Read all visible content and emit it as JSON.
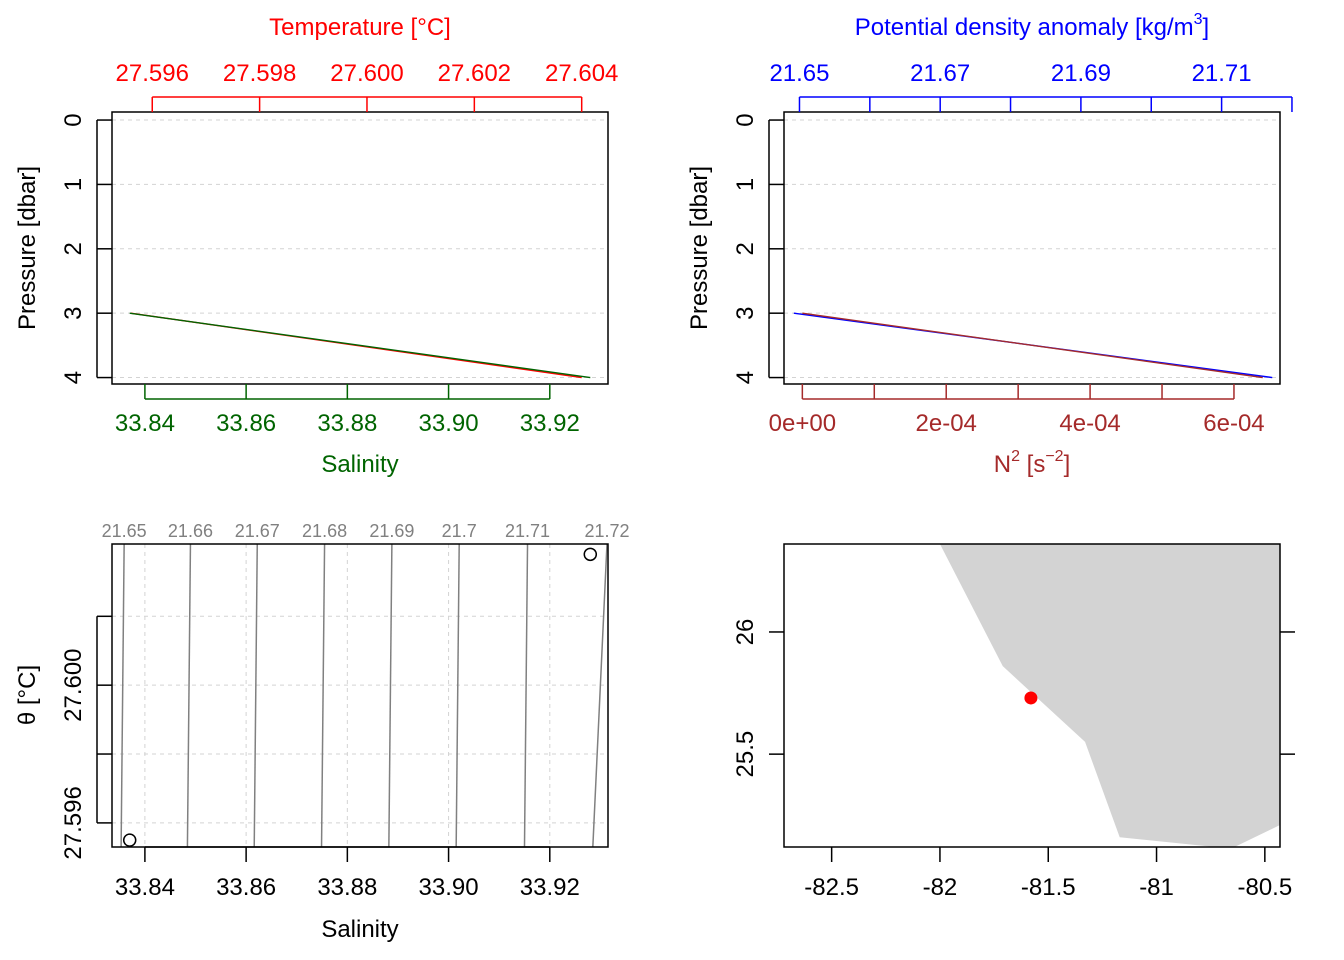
{
  "chart_data": [
    {
      "type": "line",
      "panel": "profile-salinity-temperature",
      "top_axis": {
        "label": "Temperature [°C]",
        "color": "#ff0000",
        "range": [
          27.59525,
          27.60449
        ],
        "ticks": [
          27.596,
          27.598,
          27.6,
          27.602,
          27.604
        ],
        "tick_labels": [
          "27.596",
          "27.598",
          "27.600",
          "27.602",
          "27.604"
        ]
      },
      "bottom_axis": {
        "label": "Salinity",
        "color": "#006400",
        "range": [
          33.8335,
          33.9315
        ],
        "ticks": [
          33.84,
          33.86,
          33.88,
          33.9,
          33.92
        ],
        "tick_labels": [
          "33.84",
          "33.86",
          "33.88",
          "33.90",
          "33.92"
        ]
      },
      "y_axis": {
        "label": "Pressure [dbar]",
        "range": [
          0,
          4
        ],
        "reversed": true,
        "ticks": [
          0,
          1,
          2,
          3,
          4
        ],
        "tick_labels": [
          "0",
          "1",
          "2",
          "3",
          "4"
        ]
      },
      "grid": true,
      "series": [
        {
          "variable": "salinity",
          "color": "#006400",
          "x": [
            33.837,
            33.928
          ],
          "y": [
            3,
            4
          ]
        },
        {
          "variable": "temperature",
          "color": "#ff0000",
          "x": [
            27.5956,
            27.604
          ],
          "y": [
            3,
            4
          ]
        }
      ]
    },
    {
      "type": "line",
      "panel": "profile-density-n2",
      "top_axis": {
        "label_main": "Potential density anomaly [kg/m",
        "label_sup": "3",
        "label_tail": "]",
        "color": "#0000ff",
        "range": [
          21.6478,
          21.7183
        ],
        "ticks": [
          21.65,
          21.66,
          21.67,
          21.68,
          21.69,
          21.7,
          21.71,
          21.72
        ],
        "tick_labels": [
          "21.65",
          "",
          "21.67",
          "",
          "21.69",
          "",
          "21.71",
          ""
        ]
      },
      "bottom_axis": {
        "label_main": "N",
        "label_sup1": "2",
        "label_mid": " [s",
        "label_sup2": "−2",
        "label_tail": "]",
        "color": "#a52a2a",
        "range": [
          -2.55e-05,
          0.000664
        ],
        "ticks": [
          0,
          0.0001,
          0.0002,
          0.0003,
          0.0004,
          0.0005,
          0.0006
        ],
        "tick_labels": [
          "0e+00",
          "",
          "2e-04",
          "",
          "4e-04",
          "",
          "6e-04"
        ]
      },
      "y_axis": {
        "label": "Pressure [dbar]",
        "range": [
          0,
          4
        ],
        "reversed": true,
        "ticks": [
          0,
          1,
          2,
          3,
          4
        ],
        "tick_labels": [
          "0",
          "1",
          "2",
          "3",
          "4"
        ]
      },
      "grid": true,
      "series": [
        {
          "variable": "density",
          "color": "#0000ff",
          "x": [
            21.6492,
            21.7172
          ],
          "y": [
            3,
            4
          ]
        },
        {
          "variable": "N2",
          "color": "#a52a2a",
          "x": [
            0.0,
            0.00064
          ],
          "y": [
            3,
            4
          ]
        }
      ]
    },
    {
      "type": "scatter",
      "panel": "ts-diagram",
      "x_axis": {
        "label": "Salinity",
        "range": [
          33.8335,
          33.9315
        ],
        "ticks": [
          33.84,
          33.86,
          33.88,
          33.9,
          33.92
        ],
        "tick_labels": [
          "33.84",
          "33.86",
          "33.88",
          "33.90",
          "33.92"
        ]
      },
      "y_axis": {
        "label": "θ [°C]",
        "range": [
          27.5953,
          27.6041
        ],
        "ticks": [
          27.596,
          27.598,
          27.6,
          27.602
        ],
        "tick_labels": [
          "27.596",
          "",
          "27.600",
          ""
        ]
      },
      "grid": true,
      "isopycnals": {
        "color": "#808080",
        "labels": [
          "21.65",
          "21.66",
          "21.67",
          "21.68",
          "21.69",
          "21.7",
          "21.71",
          "21.72"
        ],
        "x_bottom": [
          33.8353,
          33.8484,
          33.8616,
          33.8749,
          33.8882,
          33.9015,
          33.915,
          33.9285
        ],
        "x_top": [
          33.8359,
          33.849,
          33.8622,
          33.8755,
          33.8888,
          33.9021,
          33.9156,
          33.9313
        ],
        "label_x": [
          33.8395,
          33.8595,
          33.8795,
          33.8995,
          33.9195,
          33.9395,
          33.9595,
          33.9795
        ]
      },
      "points": {
        "x": [
          33.837,
          33.928
        ],
        "y": [
          27.5955,
          27.6038
        ]
      }
    },
    {
      "type": "map",
      "panel": "location-map",
      "x_axis": {
        "range": [
          -82.72,
          -80.43
        ],
        "ticks": [
          -82.5,
          -82,
          -81.5,
          -81,
          -80.5
        ],
        "tick_labels": [
          "-82.5",
          "-82",
          "-81.5",
          "-81",
          "-80.5"
        ]
      },
      "y_axis": {
        "range": [
          25.12,
          26.36
        ],
        "ticks": [
          25.5,
          26
        ],
        "tick_labels": [
          "25.5",
          "26"
        ]
      },
      "land_color": "#d3d3d3",
      "land": [
        [
          -82.0,
          26.36
        ],
        [
          -81.71,
          25.86
        ],
        [
          -81.33,
          25.55
        ],
        [
          -81.17,
          25.16
        ],
        [
          -80.73,
          25.12
        ],
        [
          -80.64,
          25.12
        ],
        [
          -80.43,
          25.21
        ],
        [
          -80.43,
          26.36
        ]
      ],
      "station": {
        "lon": -81.58,
        "lat": 25.73,
        "color": "#ff0000"
      }
    }
  ]
}
